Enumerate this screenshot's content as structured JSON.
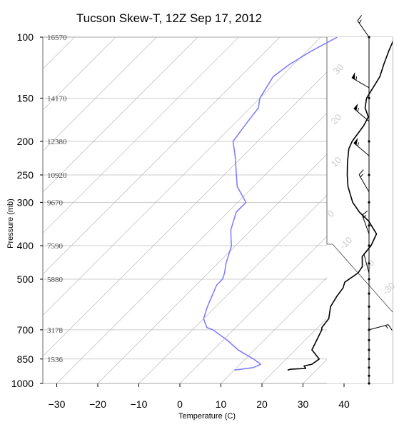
{
  "chart_data": {
    "type": "line",
    "title": "Tucson Skew-T, 12Z Sep 17, 2012",
    "xlabel": "Temperature (C)",
    "ylabel": "Pressure (mb)",
    "y_scale": "log",
    "ylim": [
      1000,
      100
    ],
    "xlim": [
      -33,
      51
    ],
    "pressure_ticks": [
      100,
      150,
      200,
      250,
      300,
      400,
      500,
      700,
      850,
      1000
    ],
    "temperature_ticks": [
      -30,
      -20,
      -10,
      0,
      10,
      20,
      30,
      40
    ],
    "heights": [
      {
        "p": 100,
        "label": "16570"
      },
      {
        "p": 150,
        "label": "14170"
      },
      {
        "p": 200,
        "label": "12380"
      },
      {
        "p": 250,
        "label": "10920"
      },
      {
        "p": 300,
        "label": "9670"
      },
      {
        "p": 400,
        "label": "7590"
      },
      {
        "p": 500,
        "label": "5880"
      },
      {
        "p": 700,
        "label": "3178"
      },
      {
        "p": 850,
        "label": "1536"
      }
    ],
    "skewed_isotherm_labels": [
      "30",
      "20",
      "10",
      "0",
      "-10",
      "-20",
      "-30"
    ],
    "series": [
      {
        "color": "#000000",
        "points": [
          [
            915,
            23
          ],
          [
            910,
            23.5
          ],
          [
            905,
            27
          ],
          [
            890,
            26
          ],
          [
            880,
            27.5
          ],
          [
            850,
            28
          ],
          [
            800,
            24
          ],
          [
            700,
            21.5
          ],
          [
            690,
            21
          ],
          [
            650,
            20.5
          ],
          [
            600,
            18
          ],
          [
            560,
            17
          ],
          [
            530,
            16.5
          ],
          [
            510,
            15.5
          ],
          [
            480,
            16.5
          ],
          [
            460,
            16
          ],
          [
            430,
            13.5
          ],
          [
            400,
            13
          ],
          [
            370,
            11.5
          ],
          [
            340,
            6.5
          ],
          [
            320,
            2
          ],
          [
            300,
            -2
          ],
          [
            270,
            -7
          ],
          [
            250,
            -10
          ],
          [
            230,
            -13
          ],
          [
            210,
            -16
          ],
          [
            200,
            -17
          ],
          [
            180,
            -18
          ],
          [
            170,
            -19
          ],
          [
            160,
            -22
          ],
          [
            150,
            -24
          ],
          [
            130,
            -26
          ],
          [
            120,
            -28
          ],
          [
            110,
            -30
          ],
          [
            100,
            -32
          ]
        ]
      },
      {
        "color": "#8080ff",
        "points": [
          [
            915,
            10
          ],
          [
            900,
            14
          ],
          [
            880,
            15
          ],
          [
            850,
            12
          ],
          [
            800,
            6
          ],
          [
            750,
            1
          ],
          [
            700,
            -5
          ],
          [
            690,
            -7
          ],
          [
            650,
            -10
          ],
          [
            600,
            -12
          ],
          [
            520,
            -15
          ],
          [
            500,
            -15
          ],
          [
            480,
            -16
          ],
          [
            450,
            -18
          ],
          [
            400,
            -21
          ],
          [
            380,
            -23
          ],
          [
            360,
            -25
          ],
          [
            320,
            -28
          ],
          [
            300,
            -28
          ],
          [
            270,
            -34
          ],
          [
            250,
            -37
          ],
          [
            220,
            -42
          ],
          [
            200,
            -46
          ],
          [
            180,
            -47
          ],
          [
            160,
            -48
          ],
          [
            150,
            -50
          ],
          [
            130,
            -52
          ],
          [
            120,
            -51
          ],
          [
            110,
            -49
          ],
          [
            100,
            -46
          ]
        ]
      }
    ],
    "wind_barbs": [
      {
        "p": 100,
        "dir": 325,
        "spd": 15
      },
      {
        "p": 140,
        "dir": 300,
        "spd": 55
      },
      {
        "p": 175,
        "dir": 310,
        "spd": 55
      },
      {
        "p": 220,
        "dir": 310,
        "spd": 55
      },
      {
        "p": 280,
        "dir": 330,
        "spd": 15
      },
      {
        "p": 370,
        "dir": 340,
        "spd": 15
      },
      {
        "p": 480,
        "dir": 345,
        "spd": 5
      },
      {
        "p": 700,
        "dir": 75,
        "spd": 15
      }
    ]
  }
}
